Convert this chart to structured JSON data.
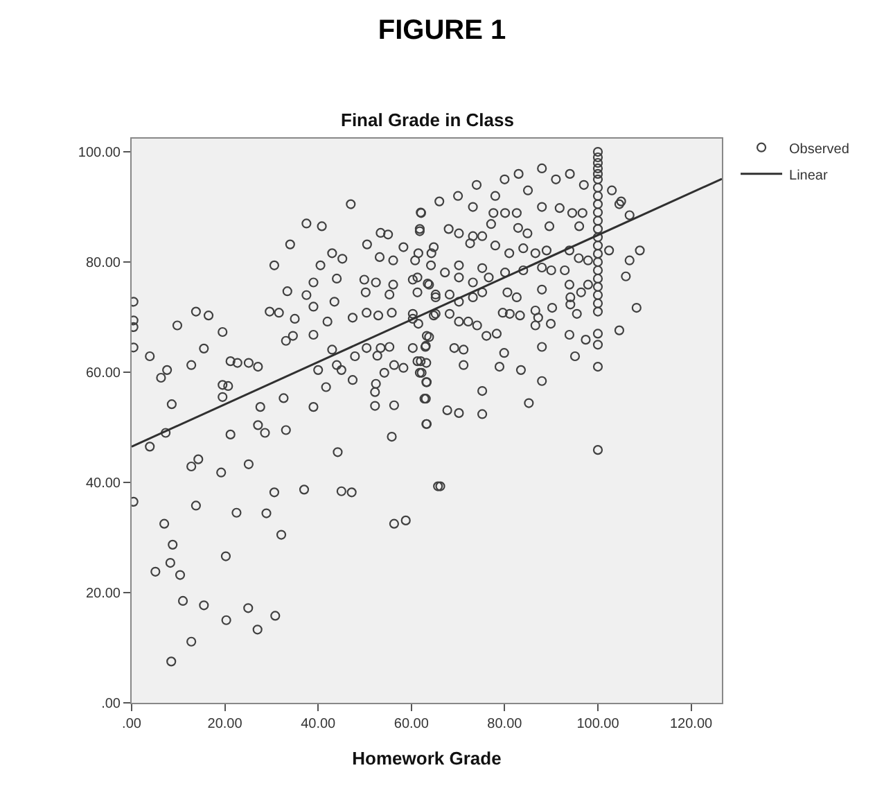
{
  "chart_data": {
    "type": "scatter",
    "title": "FIGURE 1",
    "subtitle": "Final Grade in Class",
    "xlabel": "Homework Grade",
    "xlim": [
      0,
      126.6
    ],
    "ylim": [
      0,
      102.4
    ],
    "xticks": [
      {
        "value": 0,
        "label": ".00"
      },
      {
        "value": 20,
        "label": "20.00"
      },
      {
        "value": 40,
        "label": "40.00"
      },
      {
        "value": 60,
        "label": "60.00"
      },
      {
        "value": 80,
        "label": "80.00"
      },
      {
        "value": 100,
        "label": "100.00"
      },
      {
        "value": 120,
        "label": "120.00"
      }
    ],
    "yticks": [
      {
        "value": 0,
        "label": ".00"
      },
      {
        "value": 20,
        "label": "20.00"
      },
      {
        "value": 40,
        "label": "40.00"
      },
      {
        "value": 60,
        "label": "60.00"
      },
      {
        "value": 80,
        "label": "80.00"
      },
      {
        "value": 100,
        "label": "100.00"
      }
    ],
    "grid": false,
    "legend": "top right",
    "series": [
      {
        "name": "Observed",
        "color": "#404040",
        "marker": "circle",
        "x": [
          47,
          62,
          37.5,
          40.8,
          34,
          30.6,
          43,
          45.2,
          40.5,
          33.4,
          39,
          44,
          37.5,
          43.5,
          29.6,
          31.6,
          35,
          39,
          42,
          47.4,
          39,
          33.1,
          34.6,
          43,
          44,
          40,
          45,
          41.7,
          47.4,
          32.6,
          39,
          27.6,
          27.1,
          28.6,
          33.1,
          21.2,
          44.2,
          55.8,
          25.1,
          19.2,
          12.8,
          14.3,
          3.9,
          7.3,
          8.6,
          6.3,
          7.6,
          3.9,
          12.8,
          15.5,
          19.5,
          9.8,
          13.8,
          16.5,
          0.4,
          0.4,
          0.4,
          0.4,
          19.5,
          20.7,
          19.5,
          21.2,
          22.7,
          25.1,
          27.1,
          30.6,
          37,
          45,
          47.2,
          13.8,
          22.5,
          28.9,
          0.4,
          58.8,
          56.3,
          65.7,
          53.4,
          55,
          50.5,
          58.3,
          61.8,
          64.8,
          53.2,
          56.1,
          60.8,
          64.2,
          49.9,
          52.4,
          56.1,
          60.3,
          63.5,
          65.2,
          50.2,
          55.3,
          50.4,
          52.9,
          55.8,
          60.3,
          64.8,
          61.5,
          63.8,
          50.4,
          53.4,
          55.3,
          60.3,
          63,
          47.9,
          52.7,
          56.3,
          58.3,
          54.2,
          62,
          63.2,
          61.8,
          63.2,
          52.4,
          52.2,
          63.1,
          52.2,
          56.3,
          63.2,
          62.1,
          73.2,
          77.6,
          80.1,
          82.6,
          88,
          91.8,
          94.5,
          96.7,
          104.6,
          106.8,
          61.8,
          68,
          70.2,
          73.2,
          75.2,
          77.1,
          82.9,
          84.9,
          89.6,
          96,
          102.4,
          109,
          106.8,
          106,
          108.3,
          104.6,
          64.3,
          61.5,
          70.2,
          72.6,
          78,
          81,
          84,
          86.6,
          89,
          93.9,
          95.9,
          97.9,
          61.3,
          63.8,
          67.2,
          70.2,
          73.2,
          75.2,
          76.6,
          80.1,
          84,
          88,
          90,
          92.9,
          93.9,
          96.4,
          97.9,
          61.3,
          65.2,
          68.2,
          70.2,
          73.2,
          75.2,
          80.6,
          82.6,
          88,
          94.1,
          94.1,
          60.3,
          65.2,
          68.2,
          70.2,
          72.2,
          74.1,
          79.6,
          81.1,
          83.3,
          86.6,
          87.2,
          90.2,
          95.5,
          63.3,
          76.1,
          78.3,
          86.6,
          89.9,
          93.9,
          97.4,
          63.1,
          69.2,
          71.2,
          79.9,
          88,
          95.1,
          61.3,
          71.2,
          78.9,
          83.5,
          88,
          62.2,
          63.3,
          75.2,
          62.8,
          67.7,
          70.2,
          75.2,
          85.2,
          63.3,
          66.2,
          7,
          32.1,
          8.8,
          5.1,
          8.3,
          10.4,
          20.2,
          11,
          15.5,
          20.3,
          25,
          27,
          30.8,
          12.8,
          8.5,
          74,
          78,
          80,
          83,
          85,
          88,
          91,
          94,
          97,
          103,
          105,
          70,
          66,
          100,
          100,
          100,
          100,
          100,
          100,
          100,
          100,
          100,
          100,
          100,
          100,
          100,
          100,
          100,
          100,
          100,
          100,
          100,
          100,
          100,
          100,
          100,
          100,
          100,
          100
        ],
        "values": [
          90.5,
          89,
          87,
          86.5,
          83.2,
          79.4,
          81.6,
          80.6,
          79.4,
          74.7,
          76.3,
          77,
          74,
          72.8,
          71,
          70.8,
          69.7,
          71.9,
          69.2,
          69.9,
          66.8,
          65.7,
          66.6,
          64.1,
          61.3,
          60.4,
          60.4,
          57.3,
          58.6,
          55.3,
          53.7,
          53.7,
          50.4,
          49,
          49.5,
          48.7,
          45.5,
          48.3,
          43.3,
          41.8,
          42.9,
          44.2,
          46.5,
          49,
          54.2,
          59,
          60.4,
          62.9,
          61.3,
          64.3,
          67.3,
          68.5,
          71,
          70.3,
          72.8,
          69.4,
          68.2,
          64.5,
          57.7,
          57.5,
          55.5,
          62,
          61.7,
          61.7,
          61,
          38.2,
          38.7,
          38.4,
          38.2,
          35.8,
          34.5,
          34.4,
          36.5,
          33.1,
          32.5,
          39.3,
          85.3,
          85,
          83.2,
          82.7,
          85.6,
          82.7,
          80.9,
          80.3,
          80.3,
          79.4,
          76.8,
          76.3,
          75.9,
          76.8,
          76.1,
          74.1,
          74.5,
          74.1,
          70.8,
          70.3,
          70.8,
          70.6,
          70.3,
          68.8,
          66.4,
          64.4,
          64.4,
          64.6,
          64.4,
          64.6,
          62.9,
          63,
          61.3,
          60.8,
          59.9,
          62,
          61.7,
          59.9,
          58.2,
          57.9,
          56.4,
          55.2,
          53.9,
          54,
          50.6,
          88.9,
          90,
          88.9,
          88.9,
          88.9,
          90,
          89.8,
          88.9,
          88.9,
          90.5,
          88.5,
          86,
          86,
          85.2,
          84.7,
          84.7,
          86.9,
          86.2,
          85.2,
          86.5,
          86.5,
          82.1,
          82.1,
          80.3,
          77.4,
          71.7,
          67.6,
          81.6,
          81.6,
          79.4,
          83.4,
          83,
          81.6,
          82.5,
          81.6,
          82.1,
          82.1,
          80.7,
          80.3,
          77.2,
          75.9,
          78.1,
          77.2,
          76.3,
          78.9,
          77.2,
          78.1,
          78.5,
          79,
          78.5,
          78.5,
          75.9,
          74.5,
          75.9,
          74.5,
          73.6,
          74.1,
          72.8,
          73.6,
          74.5,
          74.5,
          73.6,
          75,
          73.6,
          72.3,
          69.7,
          70.6,
          70.6,
          69.2,
          69.2,
          68.5,
          70.8,
          70.6,
          70.3,
          71.2,
          69.9,
          71.7,
          70.6,
          66.6,
          66.6,
          67,
          68.5,
          68.8,
          66.8,
          65.9,
          64.8,
          64.4,
          64.1,
          63.5,
          64.6,
          62.9,
          62,
          61.3,
          61,
          60.4,
          58.4,
          59.9,
          58.2,
          56.6,
          55.2,
          53.1,
          52.6,
          52.4,
          54.4,
          50.6,
          39.3,
          32.5,
          30.5,
          28.7,
          23.8,
          25.4,
          23.2,
          26.6,
          18.5,
          17.7,
          15,
          17.2,
          13.3,
          15.8,
          11.1,
          7.5,
          94,
          92,
          95,
          96,
          93,
          97,
          95,
          96,
          94,
          93,
          91,
          92,
          91,
          100,
          99,
          98,
          97,
          96,
          95,
          93.5,
          92,
          90.5,
          89,
          87.5,
          86,
          84.5,
          83,
          81.5,
          80,
          78.5,
          77,
          75.5,
          74,
          72.5,
          71,
          67,
          65,
          61,
          45.9
        ]
      },
      {
        "name": "Linear",
        "type": "line",
        "color": "#303030",
        "marker": "none",
        "line_style": "solid",
        "x": [
          0,
          126.6
        ],
        "values": [
          46.5,
          95.1
        ]
      }
    ]
  }
}
